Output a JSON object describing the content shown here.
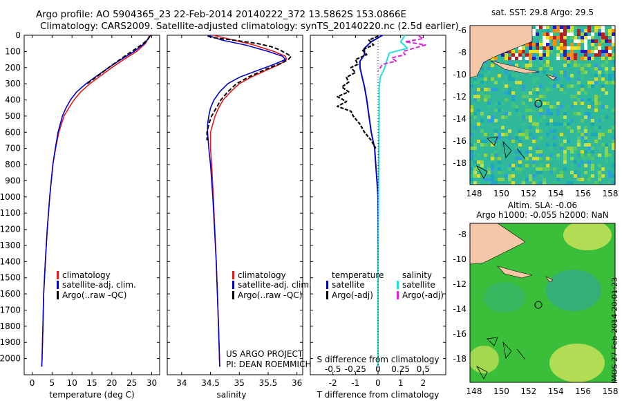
{
  "header": {
    "line1": "Argo profile: AO 5904365_23 22-Feb-2014 20140222_372 13.5862S 153.0866E",
    "line2": "Climatology: CARS2009. Satellite-adjusted climatology: synTS_20140220.nc (2.5d earlier)"
  },
  "colors": {
    "climatology": "#e31a1c",
    "satellite": "#0000cc",
    "argo": "#000000",
    "sal_satellite": "#22dddd",
    "sal_argo": "#dd22dd",
    "land": "#f5c6a8"
  },
  "legend_temp": [
    "climatology",
    "satellite-adj. clim.",
    "Argo(..raw -QC)"
  ],
  "legend_sal": [
    "climatology",
    "satellite-adj. clim.",
    "Argo(..raw -QC)"
  ],
  "legend_diff": {
    "temp_title": "temperature",
    "sal_title": "salinity",
    "temp_items": [
      "satellite",
      "Argo(-adj)"
    ],
    "sal_items": [
      "satellite",
      "Argo(-adj)"
    ]
  },
  "credits": {
    "line1": "US ARGO PROJECT",
    "line2": "PI: DEAN ROEMMICH"
  },
  "maps": {
    "sst_title": "sat. SST: 29.8 Argo: 29.5",
    "sla_title1": "Altim. SLA: -0.06",
    "sla_title2": "Argo h1000: -0.055 h2000: NaN",
    "xticks": [
      "148",
      "150",
      "152",
      "154",
      "156",
      "158"
    ],
    "yticks": [
      "-8",
      "-10",
      "-12",
      "-14",
      "-16",
      "-18"
    ],
    "sst_yticks": [
      "-6",
      "-8",
      "-10",
      "-12",
      "-14",
      "-16",
      "-18"
    ],
    "sla_yticks": [
      "-8",
      "-10",
      "-12",
      "-14",
      "-16",
      "-18"
    ]
  },
  "watermark": "IMOS 27-Feb-2014 20:01:23",
  "chart_data": [
    {
      "type": "line",
      "xlabel": "temperature (deg C)",
      "ylabel": "",
      "xlim": [
        -2,
        32
      ],
      "ylim": [
        2100,
        0
      ],
      "xticks": [
        "0",
        "5",
        "10",
        "15",
        "20",
        "25",
        "30"
      ],
      "yticks": [
        "0",
        "100",
        "200",
        "300",
        "400",
        "500",
        "600",
        "700",
        "800",
        "900",
        "1000",
        "1100",
        "1200",
        "1300",
        "1400",
        "1500",
        "1600",
        "1700",
        "1800",
        "1900",
        "2000"
      ],
      "series": [
        {
          "name": "climatology",
          "depth": [
            0,
            50,
            100,
            150,
            200,
            250,
            300,
            350,
            400,
            450,
            500,
            600,
            700,
            800,
            900,
            1000,
            1200,
            1400,
            1600,
            1800,
            2000,
            2050
          ],
          "values": [
            29.5,
            28.5,
            26.2,
            23.0,
            20.0,
            17.2,
            14.5,
            12.2,
            10.5,
            9.2,
            8.0,
            6.7,
            5.9,
            5.2,
            4.8,
            4.4,
            3.8,
            3.3,
            2.9,
            2.7,
            2.5,
            2.4
          ]
        },
        {
          "name": "satellite-adj. clim.",
          "depth": [
            0,
            50,
            100,
            150,
            200,
            250,
            300,
            350,
            400,
            450,
            500,
            600,
            700,
            800,
            900,
            1000,
            1200,
            1400,
            1600,
            1800,
            2000,
            2050
          ],
          "values": [
            29.8,
            28.2,
            25.6,
            22.3,
            19.2,
            16.3,
            13.5,
            11.2,
            9.6,
            8.5,
            7.6,
            6.5,
            5.8,
            5.2,
            4.8,
            4.4,
            3.8,
            3.3,
            2.9,
            2.7,
            2.5,
            2.4
          ]
        },
        {
          "name": "Argo(..raw -QC)",
          "depth": [
            5,
            20,
            40,
            60,
            80,
            100,
            120,
            140,
            160,
            180,
            200,
            230,
            260,
            300
          ],
          "values": [
            29.5,
            29.2,
            28.4,
            27.4,
            26.2,
            25.0,
            23.8,
            22.6,
            21.5,
            20.3,
            19.2,
            17.6,
            16.0,
            13.8
          ]
        }
      ]
    },
    {
      "type": "line",
      "xlabel": "salinity",
      "ylabel": "",
      "xlim": [
        33.75,
        36.1
      ],
      "ylim": [
        2100,
        0
      ],
      "xticks": [
        "34",
        "34.5",
        "35",
        "35.5",
        "36"
      ],
      "series": [
        {
          "name": "climatology",
          "depth": [
            0,
            30,
            60,
            100,
            130,
            150,
            180,
            220,
            260,
            300,
            350,
            400,
            450,
            500,
            550,
            600,
            700,
            800,
            1000,
            1400,
            1800,
            2050
          ],
          "values": [
            34.55,
            34.9,
            35.25,
            35.6,
            35.8,
            35.82,
            35.7,
            35.45,
            35.2,
            35.0,
            34.85,
            34.72,
            34.64,
            34.58,
            34.54,
            34.5,
            34.5,
            34.52,
            34.55,
            34.6,
            34.64,
            34.66
          ]
        },
        {
          "name": "satellite-adj. clim.",
          "depth": [
            0,
            30,
            60,
            100,
            130,
            150,
            180,
            220,
            260,
            300,
            350,
            400,
            450,
            500,
            550,
            600,
            700,
            800,
            1000,
            1400,
            1800,
            2050
          ],
          "values": [
            34.45,
            34.7,
            35.1,
            35.5,
            35.75,
            35.8,
            35.6,
            35.3,
            35.0,
            34.8,
            34.66,
            34.56,
            34.5,
            34.47,
            34.45,
            34.45,
            34.47,
            34.5,
            34.54,
            34.6,
            34.64,
            34.66
          ]
        },
        {
          "name": "Argo(..raw -QC)",
          "depth": [
            5,
            15,
            30,
            50,
            70,
            90,
            110,
            130,
            150,
            170,
            190,
            220,
            260,
            300,
            350,
            400,
            450,
            500,
            550,
            600,
            650
          ],
          "values": [
            34.45,
            34.55,
            34.9,
            35.3,
            35.55,
            35.7,
            35.8,
            35.9,
            35.85,
            35.75,
            35.6,
            35.4,
            35.15,
            34.95,
            34.8,
            34.68,
            34.6,
            34.52,
            34.47,
            34.44,
            34.44
          ]
        }
      ]
    },
    {
      "type": "line",
      "xlabel": "T difference from climatology",
      "xlabel2": "S difference from climatology",
      "ylabel": "",
      "xlim": [
        -3,
        3
      ],
      "ylim": [
        2100,
        0
      ],
      "xticks": [
        "-2",
        "-1",
        "0",
        "1",
        "2"
      ],
      "xticks2": [
        "-0.5",
        "-0.25",
        "0",
        "0.25",
        "0.5"
      ],
      "series": [
        {
          "name": "temperature satellite",
          "depth": [
            0,
            40,
            80,
            120,
            160,
            200,
            260,
            320,
            400,
            500,
            600,
            700,
            800,
            900,
            1000,
            1200,
            1500,
            1800,
            2050
          ],
          "values": [
            0.2,
            -0.3,
            -0.6,
            -0.6,
            -0.8,
            -0.8,
            -0.7,
            -0.6,
            -0.5,
            -0.4,
            -0.3,
            -0.15,
            -0.1,
            -0.05,
            0.0,
            0.0,
            0.0,
            0.0,
            0.0
          ]
        },
        {
          "name": "temperature Argo(-adj)",
          "depth": [
            5,
            30,
            60,
            90,
            120,
            150,
            180,
            200,
            230,
            260,
            290,
            320,
            350,
            380,
            410,
            440,
            470,
            500,
            550,
            600,
            650,
            700
          ],
          "values": [
            0.0,
            -0.4,
            -0.2,
            -0.7,
            -0.5,
            -1.0,
            -0.9,
            -1.2,
            -1.0,
            -1.4,
            -1.3,
            -1.6,
            -1.3,
            -1.8,
            -1.4,
            -1.8,
            -1.2,
            -1.1,
            -0.8,
            -0.6,
            -0.3,
            -0.1
          ]
        },
        {
          "name": "salinity satellite",
          "depth": [
            0,
            40,
            80,
            110,
            150,
            200,
            260,
            320,
            400,
            500,
            600,
            700,
            800,
            900,
            1000,
            1200,
            1500,
            1800,
            2050
          ],
          "values": [
            1.2,
            1.0,
            1.3,
            0.5,
            0.4,
            0.3,
            0.1,
            0.05,
            0.05,
            0.05,
            0.04,
            0.03,
            0.03,
            0.02,
            0.02,
            0.01,
            0.0,
            0.0,
            0.0
          ]
        },
        {
          "name": "salinity Argo(-adj)",
          "depth": [
            5,
            20,
            40,
            60,
            80,
            100,
            120,
            140,
            160,
            180,
            200,
            220
          ],
          "values": [
            1.8,
            2.0,
            1.2,
            2.1,
            1.6,
            1.1,
            1.2,
            0.6,
            0.8,
            0.2,
            0.1,
            0.0
          ]
        }
      ]
    }
  ]
}
